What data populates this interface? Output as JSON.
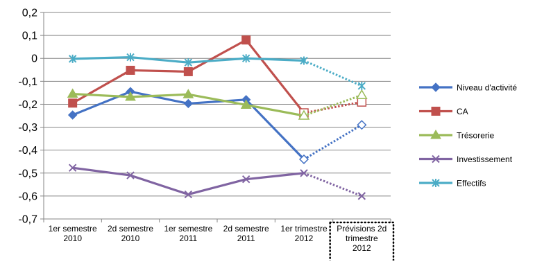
{
  "colors": {
    "axis": "#868686",
    "grid": "#868686",
    "blue": "#4472C4",
    "red": "#C0504D",
    "green": "#9BBB59",
    "purple": "#8064A2",
    "teal": "#4BACC6"
  },
  "chart_data": {
    "type": "line",
    "title": "",
    "xlabel": "",
    "ylabel": "",
    "ylim": [
      -0.7,
      0.2
    ],
    "yticks": [
      "0,2",
      "0,1",
      "0",
      "-0,1",
      "-0,2",
      "-0,3",
      "-0,4",
      "-0,5",
      "-0,6",
      "-0,7"
    ],
    "grid": true,
    "legend_position": "right",
    "categories": [
      [
        "1er semestre",
        "2010"
      ],
      [
        "2d semestre",
        "2010"
      ],
      [
        "1er semestre",
        "2011"
      ],
      [
        "2d semestre",
        "2011"
      ],
      [
        "1er trimestre",
        "2012"
      ],
      [
        "Prévisions 2d",
        "trimestre",
        "2012"
      ]
    ],
    "last_point_is_forecast": true,
    "series": [
      {
        "name": "Niveau d'activité",
        "color": "#4472C4",
        "marker": "diamond",
        "values": [
          -0.247,
          -0.145,
          -0.197,
          -0.18,
          -0.44,
          -0.29
        ]
      },
      {
        "name": "CA",
        "color": "#C0504D",
        "marker": "square",
        "values": [
          -0.195,
          -0.052,
          -0.058,
          0.08,
          -0.238,
          -0.19
        ]
      },
      {
        "name": "Trésorerie",
        "color": "#9BBB59",
        "marker": "triangle",
        "values": [
          -0.155,
          -0.168,
          -0.157,
          -0.203,
          -0.25,
          -0.16
        ]
      },
      {
        "name": "Investissement",
        "color": "#8064A2",
        "marker": "x",
        "values": [
          -0.477,
          -0.51,
          -0.593,
          -0.527,
          -0.5,
          -0.6
        ]
      },
      {
        "name": "Effectifs",
        "color": "#4BACC6",
        "marker": "star",
        "values": [
          -0.002,
          0.005,
          -0.018,
          0.0,
          -0.01,
          -0.12
        ]
      }
    ]
  }
}
